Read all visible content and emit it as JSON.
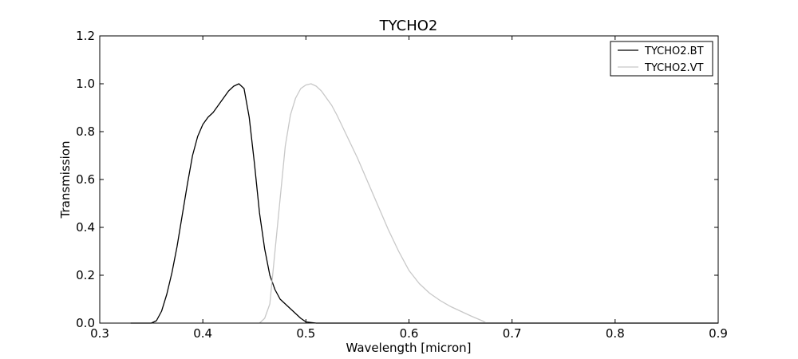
{
  "chart_data": {
    "type": "line",
    "title": "TYCHO2",
    "xlabel": "Wavelength [micron]",
    "ylabel": "Transmission",
    "xlim": [
      0.3,
      0.9
    ],
    "ylim": [
      0.0,
      1.2
    ],
    "xticks": [
      0.3,
      0.4,
      0.5,
      0.6,
      0.7,
      0.8,
      0.9
    ],
    "xtick_labels": [
      "0.3",
      "0.4",
      "0.5",
      "0.6",
      "0.7",
      "0.8",
      "0.9"
    ],
    "yticks": [
      0.0,
      0.2,
      0.4,
      0.6,
      0.8,
      1.0,
      1.2
    ],
    "ytick_labels": [
      "0.0",
      "0.2",
      "0.4",
      "0.6",
      "0.8",
      "1.0",
      "1.2"
    ],
    "grid": false,
    "legend_position": "top-right",
    "series": [
      {
        "name": "TYCHO2.BT",
        "color": "#000000",
        "points": [
          [
            0.33,
            0.0
          ],
          [
            0.35,
            0.0
          ],
          [
            0.355,
            0.01
          ],
          [
            0.36,
            0.05
          ],
          [
            0.365,
            0.12
          ],
          [
            0.37,
            0.21
          ],
          [
            0.375,
            0.32
          ],
          [
            0.38,
            0.45
          ],
          [
            0.385,
            0.58
          ],
          [
            0.39,
            0.7
          ],
          [
            0.395,
            0.78
          ],
          [
            0.4,
            0.83
          ],
          [
            0.405,
            0.86
          ],
          [
            0.41,
            0.88
          ],
          [
            0.415,
            0.91
          ],
          [
            0.42,
            0.94
          ],
          [
            0.425,
            0.97
          ],
          [
            0.43,
            0.99
          ],
          [
            0.435,
            1.0
          ],
          [
            0.44,
            0.98
          ],
          [
            0.445,
            0.86
          ],
          [
            0.45,
            0.67
          ],
          [
            0.455,
            0.46
          ],
          [
            0.46,
            0.31
          ],
          [
            0.465,
            0.2
          ],
          [
            0.47,
            0.14
          ],
          [
            0.475,
            0.1
          ],
          [
            0.48,
            0.08
          ],
          [
            0.485,
            0.06
          ],
          [
            0.49,
            0.04
          ],
          [
            0.495,
            0.02
          ],
          [
            0.5,
            0.005
          ],
          [
            0.51,
            0.0
          ],
          [
            0.6,
            0.0
          ],
          [
            0.7,
            0.0
          ],
          [
            0.9,
            0.0
          ]
        ]
      },
      {
        "name": "TYCHO2.VT",
        "color": "#c8c8c8",
        "points": [
          [
            0.455,
            0.0
          ],
          [
            0.46,
            0.02
          ],
          [
            0.465,
            0.08
          ],
          [
            0.47,
            0.3
          ],
          [
            0.475,
            0.52
          ],
          [
            0.48,
            0.74
          ],
          [
            0.485,
            0.87
          ],
          [
            0.49,
            0.94
          ],
          [
            0.495,
            0.98
          ],
          [
            0.5,
            0.995
          ],
          [
            0.505,
            1.0
          ],
          [
            0.51,
            0.99
          ],
          [
            0.515,
            0.97
          ],
          [
            0.52,
            0.94
          ],
          [
            0.525,
            0.91
          ],
          [
            0.53,
            0.87
          ],
          [
            0.54,
            0.78
          ],
          [
            0.55,
            0.69
          ],
          [
            0.56,
            0.59
          ],
          [
            0.57,
            0.49
          ],
          [
            0.58,
            0.39
          ],
          [
            0.59,
            0.3
          ],
          [
            0.6,
            0.22
          ],
          [
            0.61,
            0.165
          ],
          [
            0.62,
            0.125
          ],
          [
            0.63,
            0.095
          ],
          [
            0.64,
            0.07
          ],
          [
            0.65,
            0.05
          ],
          [
            0.66,
            0.03
          ],
          [
            0.672,
            0.008
          ],
          [
            0.675,
            0.0
          ]
        ]
      }
    ]
  }
}
